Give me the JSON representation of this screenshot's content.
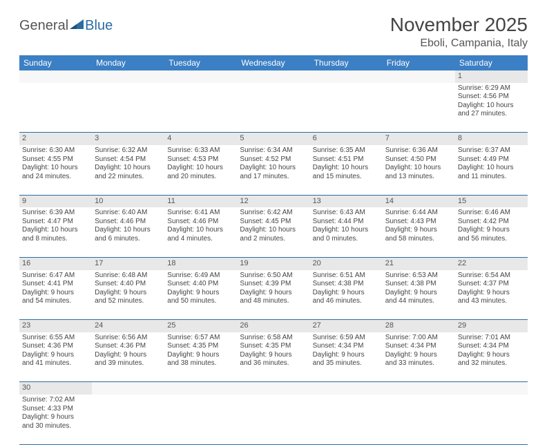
{
  "logo": {
    "text1": "General",
    "text2": "Blue",
    "triangle_color": "#2b6ca3"
  },
  "title": "November 2025",
  "location": "Eboli, Campania, Italy",
  "colors": {
    "header_bg": "#3b7fc4",
    "header_fg": "#ffffff",
    "daynum_bg": "#e8e8e8",
    "border": "#2b6ca3",
    "text": "#444444"
  },
  "day_headers": [
    "Sunday",
    "Monday",
    "Tuesday",
    "Wednesday",
    "Thursday",
    "Friday",
    "Saturday"
  ],
  "weeks": [
    {
      "nums": [
        "",
        "",
        "",
        "",
        "",
        "",
        "1"
      ],
      "cells": [
        null,
        null,
        null,
        null,
        null,
        null,
        {
          "sunrise": "Sunrise: 6:29 AM",
          "sunset": "Sunset: 4:56 PM",
          "day1": "Daylight: 10 hours",
          "day2": "and 27 minutes."
        }
      ]
    },
    {
      "nums": [
        "2",
        "3",
        "4",
        "5",
        "6",
        "7",
        "8"
      ],
      "cells": [
        {
          "sunrise": "Sunrise: 6:30 AM",
          "sunset": "Sunset: 4:55 PM",
          "day1": "Daylight: 10 hours",
          "day2": "and 24 minutes."
        },
        {
          "sunrise": "Sunrise: 6:32 AM",
          "sunset": "Sunset: 4:54 PM",
          "day1": "Daylight: 10 hours",
          "day2": "and 22 minutes."
        },
        {
          "sunrise": "Sunrise: 6:33 AM",
          "sunset": "Sunset: 4:53 PM",
          "day1": "Daylight: 10 hours",
          "day2": "and 20 minutes."
        },
        {
          "sunrise": "Sunrise: 6:34 AM",
          "sunset": "Sunset: 4:52 PM",
          "day1": "Daylight: 10 hours",
          "day2": "and 17 minutes."
        },
        {
          "sunrise": "Sunrise: 6:35 AM",
          "sunset": "Sunset: 4:51 PM",
          "day1": "Daylight: 10 hours",
          "day2": "and 15 minutes."
        },
        {
          "sunrise": "Sunrise: 6:36 AM",
          "sunset": "Sunset: 4:50 PM",
          "day1": "Daylight: 10 hours",
          "day2": "and 13 minutes."
        },
        {
          "sunrise": "Sunrise: 6:37 AM",
          "sunset": "Sunset: 4:49 PM",
          "day1": "Daylight: 10 hours",
          "day2": "and 11 minutes."
        }
      ]
    },
    {
      "nums": [
        "9",
        "10",
        "11",
        "12",
        "13",
        "14",
        "15"
      ],
      "cells": [
        {
          "sunrise": "Sunrise: 6:39 AM",
          "sunset": "Sunset: 4:47 PM",
          "day1": "Daylight: 10 hours",
          "day2": "and 8 minutes."
        },
        {
          "sunrise": "Sunrise: 6:40 AM",
          "sunset": "Sunset: 4:46 PM",
          "day1": "Daylight: 10 hours",
          "day2": "and 6 minutes."
        },
        {
          "sunrise": "Sunrise: 6:41 AM",
          "sunset": "Sunset: 4:46 PM",
          "day1": "Daylight: 10 hours",
          "day2": "and 4 minutes."
        },
        {
          "sunrise": "Sunrise: 6:42 AM",
          "sunset": "Sunset: 4:45 PM",
          "day1": "Daylight: 10 hours",
          "day2": "and 2 minutes."
        },
        {
          "sunrise": "Sunrise: 6:43 AM",
          "sunset": "Sunset: 4:44 PM",
          "day1": "Daylight: 10 hours",
          "day2": "and 0 minutes."
        },
        {
          "sunrise": "Sunrise: 6:44 AM",
          "sunset": "Sunset: 4:43 PM",
          "day1": "Daylight: 9 hours",
          "day2": "and 58 minutes."
        },
        {
          "sunrise": "Sunrise: 6:46 AM",
          "sunset": "Sunset: 4:42 PM",
          "day1": "Daylight: 9 hours",
          "day2": "and 56 minutes."
        }
      ]
    },
    {
      "nums": [
        "16",
        "17",
        "18",
        "19",
        "20",
        "21",
        "22"
      ],
      "cells": [
        {
          "sunrise": "Sunrise: 6:47 AM",
          "sunset": "Sunset: 4:41 PM",
          "day1": "Daylight: 9 hours",
          "day2": "and 54 minutes."
        },
        {
          "sunrise": "Sunrise: 6:48 AM",
          "sunset": "Sunset: 4:40 PM",
          "day1": "Daylight: 9 hours",
          "day2": "and 52 minutes."
        },
        {
          "sunrise": "Sunrise: 6:49 AM",
          "sunset": "Sunset: 4:40 PM",
          "day1": "Daylight: 9 hours",
          "day2": "and 50 minutes."
        },
        {
          "sunrise": "Sunrise: 6:50 AM",
          "sunset": "Sunset: 4:39 PM",
          "day1": "Daylight: 9 hours",
          "day2": "and 48 minutes."
        },
        {
          "sunrise": "Sunrise: 6:51 AM",
          "sunset": "Sunset: 4:38 PM",
          "day1": "Daylight: 9 hours",
          "day2": "and 46 minutes."
        },
        {
          "sunrise": "Sunrise: 6:53 AM",
          "sunset": "Sunset: 4:38 PM",
          "day1": "Daylight: 9 hours",
          "day2": "and 44 minutes."
        },
        {
          "sunrise": "Sunrise: 6:54 AM",
          "sunset": "Sunset: 4:37 PM",
          "day1": "Daylight: 9 hours",
          "day2": "and 43 minutes."
        }
      ]
    },
    {
      "nums": [
        "23",
        "24",
        "25",
        "26",
        "27",
        "28",
        "29"
      ],
      "cells": [
        {
          "sunrise": "Sunrise: 6:55 AM",
          "sunset": "Sunset: 4:36 PM",
          "day1": "Daylight: 9 hours",
          "day2": "and 41 minutes."
        },
        {
          "sunrise": "Sunrise: 6:56 AM",
          "sunset": "Sunset: 4:36 PM",
          "day1": "Daylight: 9 hours",
          "day2": "and 39 minutes."
        },
        {
          "sunrise": "Sunrise: 6:57 AM",
          "sunset": "Sunset: 4:35 PM",
          "day1": "Daylight: 9 hours",
          "day2": "and 38 minutes."
        },
        {
          "sunrise": "Sunrise: 6:58 AM",
          "sunset": "Sunset: 4:35 PM",
          "day1": "Daylight: 9 hours",
          "day2": "and 36 minutes."
        },
        {
          "sunrise": "Sunrise: 6:59 AM",
          "sunset": "Sunset: 4:34 PM",
          "day1": "Daylight: 9 hours",
          "day2": "and 35 minutes."
        },
        {
          "sunrise": "Sunrise: 7:00 AM",
          "sunset": "Sunset: 4:34 PM",
          "day1": "Daylight: 9 hours",
          "day2": "and 33 minutes."
        },
        {
          "sunrise": "Sunrise: 7:01 AM",
          "sunset": "Sunset: 4:34 PM",
          "day1": "Daylight: 9 hours",
          "day2": "and 32 minutes."
        }
      ]
    },
    {
      "nums": [
        "30",
        "",
        "",
        "",
        "",
        "",
        ""
      ],
      "cells": [
        {
          "sunrise": "Sunrise: 7:02 AM",
          "sunset": "Sunset: 4:33 PM",
          "day1": "Daylight: 9 hours",
          "day2": "and 30 minutes."
        },
        null,
        null,
        null,
        null,
        null,
        null
      ]
    }
  ]
}
